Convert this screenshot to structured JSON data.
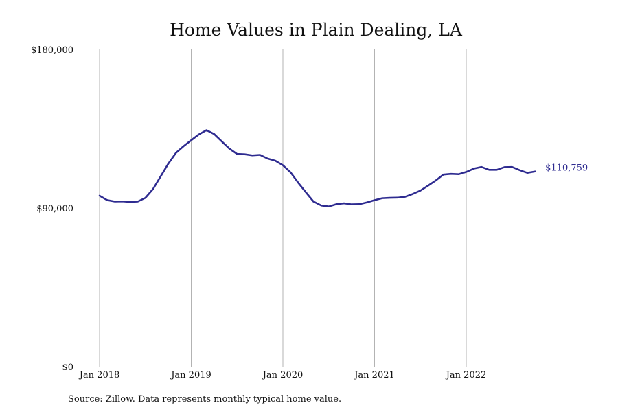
{
  "chart_data": {
    "type": "line",
    "title": "Home Values in Plain Dealing, LA",
    "xlabel": "",
    "ylabel": "",
    "source_note": "Source: Zillow. Data represents monthly typical home value.",
    "end_label": "$110,759",
    "y_ticks": [
      {
        "value": 0,
        "label": "$0"
      },
      {
        "value": 90000,
        "label": "$90,000"
      },
      {
        "value": 180000,
        "label": "$180,000"
      }
    ],
    "x_ticks": [
      {
        "value": "2018-01",
        "label": "Jan 2018"
      },
      {
        "value": "2019-01",
        "label": "Jan 2019"
      },
      {
        "value": "2020-01",
        "label": "Jan 2020"
      },
      {
        "value": "2021-01",
        "label": "Jan 2021"
      },
      {
        "value": "2022-01",
        "label": "Jan 2022"
      }
    ],
    "xlim": [
      "2018-01",
      "2022-10"
    ],
    "ylim": [
      0,
      180000
    ],
    "grid": {
      "vertical": true,
      "horizontal": false
    },
    "line_color": "#2e2b90",
    "x": [
      "2018-01",
      "2018-02",
      "2018-03",
      "2018-04",
      "2018-05",
      "2018-06",
      "2018-07",
      "2018-08",
      "2018-09",
      "2018-10",
      "2018-11",
      "2018-12",
      "2019-01",
      "2019-02",
      "2019-03",
      "2019-04",
      "2019-05",
      "2019-06",
      "2019-07",
      "2019-08",
      "2019-09",
      "2019-10",
      "2019-11",
      "2019-12",
      "2020-01",
      "2020-02",
      "2020-03",
      "2020-04",
      "2020-05",
      "2020-06",
      "2020-07",
      "2020-08",
      "2020-09",
      "2020-10",
      "2020-11",
      "2020-12",
      "2021-01",
      "2021-02",
      "2021-03",
      "2021-04",
      "2021-05",
      "2021-06",
      "2021-07",
      "2021-08",
      "2021-09",
      "2021-10",
      "2021-11",
      "2021-12",
      "2022-01",
      "2022-02",
      "2022-03",
      "2022-04",
      "2022-05",
      "2022-06",
      "2022-07",
      "2022-08",
      "2022-09",
      "2022-10"
    ],
    "series": [
      {
        "values": [
          97000,
          94500,
          93700,
          93800,
          93500,
          93700,
          95800,
          100800,
          108000,
          115200,
          121300,
          125100,
          128500,
          131800,
          134200,
          132000,
          127800,
          123700,
          120700,
          120500,
          119900,
          120200,
          118100,
          116900,
          114300,
          110300,
          104400,
          99000,
          93700,
          91500,
          90900,
          92200,
          92700,
          92100,
          92200,
          93200,
          94500,
          95600,
          95800,
          95900,
          96400,
          98000,
          99900,
          102700,
          105600,
          109000,
          109400,
          109200,
          110500,
          112400,
          113300,
          111700,
          111700,
          113200,
          113300,
          111500,
          110000,
          110759
        ]
      }
    ]
  }
}
